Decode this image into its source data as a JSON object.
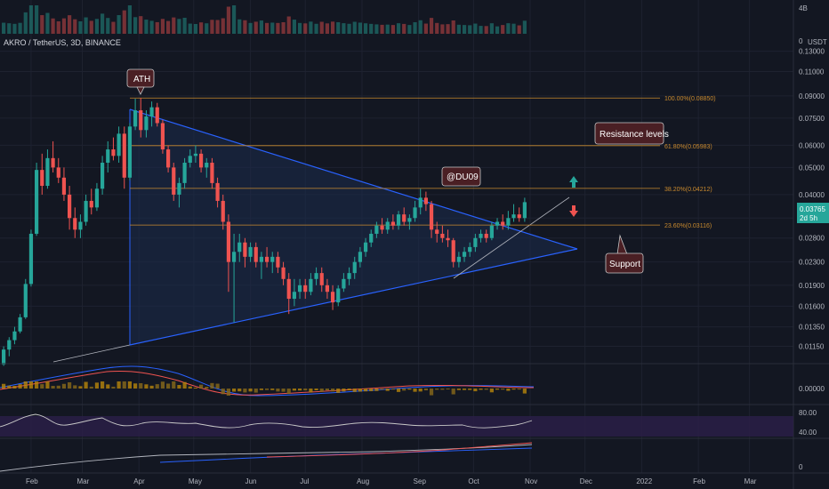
{
  "title": "AKRO / TetherUS, 3D, BINANCE",
  "volume_axis_labels": [
    "4B",
    "0"
  ],
  "price_axis": {
    "unit": "USDT",
    "ticks": [
      "0.13000",
      "0.11000",
      "0.09000",
      "0.07500",
      "0.06000",
      "0.05000",
      "0.04000",
      "0.03300",
      "0.02800",
      "0.02300",
      "0.01900",
      "0.01600",
      "0.01350",
      "0.01150"
    ]
  },
  "current_price": {
    "value": "0.03765",
    "countdown": "2d 5h",
    "color": "#26a69a"
  },
  "time_axis": [
    "Feb",
    "Mar",
    "Apr",
    "May",
    "Jun",
    "Jul",
    "Aug",
    "Sep",
    "Oct",
    "Nov",
    "Dec",
    "2022",
    "Feb",
    "Mar"
  ],
  "fib_levels": [
    {
      "label": "100.00%(0.08850)",
      "price": 0.0885
    },
    {
      "label": "61.80%(0.05983)",
      "price": 0.05983
    },
    {
      "label": "38.20%(0.04212)",
      "price": 0.04212
    },
    {
      "label": "23.60%(0.03116)",
      "price": 0.03116
    }
  ],
  "annotations": {
    "ath": "ATH",
    "watermark": "@DU09",
    "resistance": "Resistance levels",
    "support": "Support"
  },
  "macd_axis": [
    "0.00000"
  ],
  "rsi_axis": [
    "80.00",
    "40.00"
  ],
  "adx_axis": [
    "0"
  ],
  "colors": {
    "up": "#26a69a",
    "down": "#ef5350",
    "fib": "#c98a2e",
    "triangle": "#2962ff",
    "bg": "#131722"
  },
  "chart_data": {
    "type": "candlestick",
    "title": "AKRO / TetherUS, 3D, BINANCE",
    "scale": "log",
    "ylim": [
      0.0105,
      0.15
    ],
    "x_range": [
      "2021-01-15",
      "2022-03-25"
    ],
    "candles": [
      {
        "d": "2021-01-17",
        "o": 0.0099,
        "h": 0.0115,
        "l": 0.0098,
        "c": 0.0112
      },
      {
        "d": "2021-01-20",
        "o": 0.0112,
        "h": 0.0124,
        "l": 0.0106,
        "c": 0.0121
      },
      {
        "d": "2021-01-23",
        "o": 0.0121,
        "h": 0.0135,
        "l": 0.0117,
        "c": 0.013
      },
      {
        "d": "2021-01-26",
        "o": 0.013,
        "h": 0.015,
        "l": 0.0128,
        "c": 0.0146
      },
      {
        "d": "2021-01-29",
        "o": 0.0146,
        "h": 0.02,
        "l": 0.0144,
        "c": 0.0192
      },
      {
        "d": "2021-02-01",
        "o": 0.0192,
        "h": 0.03,
        "l": 0.0188,
        "c": 0.029
      },
      {
        "d": "2021-02-04",
        "o": 0.029,
        "h": 0.052,
        "l": 0.0285,
        "c": 0.049
      },
      {
        "d": "2021-02-07",
        "o": 0.049,
        "h": 0.056,
        "l": 0.04,
        "c": 0.043
      },
      {
        "d": "2021-02-10",
        "o": 0.043,
        "h": 0.058,
        "l": 0.042,
        "c": 0.054
      },
      {
        "d": "2021-02-13",
        "o": 0.054,
        "h": 0.062,
        "l": 0.048,
        "c": 0.05
      },
      {
        "d": "2021-02-16",
        "o": 0.05,
        "h": 0.054,
        "l": 0.044,
        "c": 0.046
      },
      {
        "d": "2021-02-19",
        "o": 0.046,
        "h": 0.05,
        "l": 0.038,
        "c": 0.04
      },
      {
        "d": "2021-02-22",
        "o": 0.04,
        "h": 0.043,
        "l": 0.03,
        "c": 0.033
      },
      {
        "d": "2021-02-25",
        "o": 0.033,
        "h": 0.036,
        "l": 0.028,
        "c": 0.03
      },
      {
        "d": "2021-02-28",
        "o": 0.03,
        "h": 0.034,
        "l": 0.028,
        "c": 0.032
      },
      {
        "d": "2021-03-03",
        "o": 0.032,
        "h": 0.04,
        "l": 0.031,
        "c": 0.038
      },
      {
        "d": "2021-03-06",
        "o": 0.038,
        "h": 0.042,
        "l": 0.034,
        "c": 0.036
      },
      {
        "d": "2021-03-09",
        "o": 0.036,
        "h": 0.044,
        "l": 0.035,
        "c": 0.042
      },
      {
        "d": "2021-03-12",
        "o": 0.042,
        "h": 0.055,
        "l": 0.04,
        "c": 0.052
      },
      {
        "d": "2021-03-15",
        "o": 0.052,
        "h": 0.062,
        "l": 0.048,
        "c": 0.058
      },
      {
        "d": "2021-03-18",
        "o": 0.058,
        "h": 0.064,
        "l": 0.053,
        "c": 0.055
      },
      {
        "d": "2021-03-21",
        "o": 0.055,
        "h": 0.07,
        "l": 0.052,
        "c": 0.066
      },
      {
        "d": "2021-03-24",
        "o": 0.066,
        "h": 0.07,
        "l": 0.042,
        "c": 0.046
      },
      {
        "d": "2021-03-27",
        "o": 0.046,
        "h": 0.072,
        "l": 0.045,
        "c": 0.07
      },
      {
        "d": "2021-03-30",
        "o": 0.07,
        "h": 0.088,
        "l": 0.068,
        "c": 0.08
      },
      {
        "d": "2021-04-02",
        "o": 0.08,
        "h": 0.0885,
        "l": 0.064,
        "c": 0.068
      },
      {
        "d": "2021-04-05",
        "o": 0.068,
        "h": 0.08,
        "l": 0.064,
        "c": 0.076
      },
      {
        "d": "2021-04-08",
        "o": 0.076,
        "h": 0.086,
        "l": 0.07,
        "c": 0.082
      },
      {
        "d": "2021-04-11",
        "o": 0.082,
        "h": 0.085,
        "l": 0.07,
        "c": 0.072
      },
      {
        "d": "2021-04-14",
        "o": 0.072,
        "h": 0.074,
        "l": 0.056,
        "c": 0.058
      },
      {
        "d": "2021-04-17",
        "o": 0.058,
        "h": 0.06,
        "l": 0.048,
        "c": 0.05
      },
      {
        "d": "2021-04-20",
        "o": 0.05,
        "h": 0.052,
        "l": 0.038,
        "c": 0.04
      },
      {
        "d": "2021-04-23",
        "o": 0.04,
        "h": 0.046,
        "l": 0.036,
        "c": 0.044
      },
      {
        "d": "2021-04-26",
        "o": 0.044,
        "h": 0.054,
        "l": 0.042,
        "c": 0.052
      },
      {
        "d": "2021-04-29",
        "o": 0.052,
        "h": 0.058,
        "l": 0.05,
        "c": 0.055
      },
      {
        "d": "2021-05-02",
        "o": 0.055,
        "h": 0.06,
        "l": 0.052,
        "c": 0.056
      },
      {
        "d": "2021-05-05",
        "o": 0.056,
        "h": 0.058,
        "l": 0.048,
        "c": 0.05
      },
      {
        "d": "2021-05-08",
        "o": 0.05,
        "h": 0.054,
        "l": 0.046,
        "c": 0.052
      },
      {
        "d": "2021-05-11",
        "o": 0.052,
        "h": 0.054,
        "l": 0.042,
        "c": 0.044
      },
      {
        "d": "2021-05-14",
        "o": 0.044,
        "h": 0.046,
        "l": 0.036,
        "c": 0.038
      },
      {
        "d": "2021-05-17",
        "o": 0.038,
        "h": 0.04,
        "l": 0.03,
        "c": 0.032
      },
      {
        "d": "2021-05-20",
        "o": 0.032,
        "h": 0.034,
        "l": 0.018,
        "c": 0.023
      },
      {
        "d": "2021-05-23",
        "o": 0.023,
        "h": 0.029,
        "l": 0.014,
        "c": 0.025
      },
      {
        "d": "2021-05-26",
        "o": 0.025,
        "h": 0.029,
        "l": 0.023,
        "c": 0.027
      },
      {
        "d": "2021-05-29",
        "o": 0.027,
        "h": 0.028,
        "l": 0.022,
        "c": 0.024
      },
      {
        "d": "2021-06-01",
        "o": 0.024,
        "h": 0.027,
        "l": 0.023,
        "c": 0.026
      },
      {
        "d": "2021-06-04",
        "o": 0.026,
        "h": 0.027,
        "l": 0.022,
        "c": 0.023
      },
      {
        "d": "2021-06-07",
        "o": 0.023,
        "h": 0.025,
        "l": 0.02,
        "c": 0.024
      },
      {
        "d": "2021-06-10",
        "o": 0.024,
        "h": 0.026,
        "l": 0.022,
        "c": 0.023
      },
      {
        "d": "2021-06-13",
        "o": 0.023,
        "h": 0.025,
        "l": 0.021,
        "c": 0.024
      },
      {
        "d": "2021-06-16",
        "o": 0.024,
        "h": 0.025,
        "l": 0.021,
        "c": 0.022
      },
      {
        "d": "2021-06-19",
        "o": 0.022,
        "h": 0.023,
        "l": 0.019,
        "c": 0.02
      },
      {
        "d": "2021-06-22",
        "o": 0.02,
        "h": 0.021,
        "l": 0.015,
        "c": 0.017
      },
      {
        "d": "2021-06-25",
        "o": 0.017,
        "h": 0.02,
        "l": 0.016,
        "c": 0.018
      },
      {
        "d": "2021-06-28",
        "o": 0.018,
        "h": 0.02,
        "l": 0.017,
        "c": 0.019
      },
      {
        "d": "2021-07-01",
        "o": 0.019,
        "h": 0.02,
        "l": 0.017,
        "c": 0.018
      },
      {
        "d": "2021-07-04",
        "o": 0.018,
        "h": 0.021,
        "l": 0.0175,
        "c": 0.02
      },
      {
        "d": "2021-07-07",
        "o": 0.02,
        "h": 0.022,
        "l": 0.019,
        "c": 0.021
      },
      {
        "d": "2021-07-10",
        "o": 0.021,
        "h": 0.022,
        "l": 0.018,
        "c": 0.019
      },
      {
        "d": "2021-07-13",
        "o": 0.019,
        "h": 0.02,
        "l": 0.017,
        "c": 0.018
      },
      {
        "d": "2021-07-16",
        "o": 0.018,
        "h": 0.019,
        "l": 0.0155,
        "c": 0.0165
      },
      {
        "d": "2021-07-19",
        "o": 0.0165,
        "h": 0.019,
        "l": 0.016,
        "c": 0.0185
      },
      {
        "d": "2021-07-22",
        "o": 0.0185,
        "h": 0.021,
        "l": 0.018,
        "c": 0.02
      },
      {
        "d": "2021-07-25",
        "o": 0.02,
        "h": 0.022,
        "l": 0.019,
        "c": 0.021
      },
      {
        "d": "2021-07-28",
        "o": 0.021,
        "h": 0.024,
        "l": 0.02,
        "c": 0.023
      },
      {
        "d": "2021-07-31",
        "o": 0.023,
        "h": 0.026,
        "l": 0.022,
        "c": 0.025
      },
      {
        "d": "2021-08-03",
        "o": 0.025,
        "h": 0.028,
        "l": 0.024,
        "c": 0.027
      },
      {
        "d": "2021-08-06",
        "o": 0.027,
        "h": 0.03,
        "l": 0.026,
        "c": 0.029
      },
      {
        "d": "2021-08-09",
        "o": 0.029,
        "h": 0.032,
        "l": 0.028,
        "c": 0.031
      },
      {
        "d": "2021-08-12",
        "o": 0.031,
        "h": 0.033,
        "l": 0.029,
        "c": 0.03
      },
      {
        "d": "2021-08-15",
        "o": 0.03,
        "h": 0.033,
        "l": 0.029,
        "c": 0.032
      },
      {
        "d": "2021-08-18",
        "o": 0.032,
        "h": 0.034,
        "l": 0.03,
        "c": 0.031
      },
      {
        "d": "2021-08-21",
        "o": 0.031,
        "h": 0.035,
        "l": 0.03,
        "c": 0.034
      },
      {
        "d": "2021-08-24",
        "o": 0.034,
        "h": 0.036,
        "l": 0.031,
        "c": 0.032
      },
      {
        "d": "2021-08-27",
        "o": 0.032,
        "h": 0.034,
        "l": 0.03,
        "c": 0.033
      },
      {
        "d": "2021-08-30",
        "o": 0.033,
        "h": 0.038,
        "l": 0.032,
        "c": 0.036
      },
      {
        "d": "2021-09-02",
        "o": 0.036,
        "h": 0.042,
        "l": 0.034,
        "c": 0.039
      },
      {
        "d": "2021-09-05",
        "o": 0.039,
        "h": 0.041,
        "l": 0.035,
        "c": 0.037
      },
      {
        "d": "2021-09-08",
        "o": 0.037,
        "h": 0.038,
        "l": 0.028,
        "c": 0.03
      },
      {
        "d": "2021-09-11",
        "o": 0.03,
        "h": 0.032,
        "l": 0.027,
        "c": 0.029
      },
      {
        "d": "2021-09-14",
        "o": 0.029,
        "h": 0.031,
        "l": 0.027,
        "c": 0.028
      },
      {
        "d": "2021-09-17",
        "o": 0.028,
        "h": 0.03,
        "l": 0.026,
        "c": 0.0275
      },
      {
        "d": "2021-09-20",
        "o": 0.0275,
        "h": 0.028,
        "l": 0.022,
        "c": 0.023
      },
      {
        "d": "2021-09-23",
        "o": 0.023,
        "h": 0.025,
        "l": 0.022,
        "c": 0.024
      },
      {
        "d": "2021-09-26",
        "o": 0.024,
        "h": 0.026,
        "l": 0.023,
        "c": 0.025
      },
      {
        "d": "2021-09-29",
        "o": 0.025,
        "h": 0.027,
        "l": 0.024,
        "c": 0.026
      },
      {
        "d": "2021-10-02",
        "o": 0.026,
        "h": 0.029,
        "l": 0.025,
        "c": 0.028
      },
      {
        "d": "2021-10-05",
        "o": 0.028,
        "h": 0.03,
        "l": 0.027,
        "c": 0.029
      },
      {
        "d": "2021-10-08",
        "o": 0.029,
        "h": 0.03,
        "l": 0.027,
        "c": 0.028
      },
      {
        "d": "2021-10-11",
        "o": 0.028,
        "h": 0.032,
        "l": 0.0275,
        "c": 0.031
      },
      {
        "d": "2021-10-14",
        "o": 0.031,
        "h": 0.033,
        "l": 0.03,
        "c": 0.032
      },
      {
        "d": "2021-10-17",
        "o": 0.032,
        "h": 0.034,
        "l": 0.03,
        "c": 0.031
      },
      {
        "d": "2021-10-20",
        "o": 0.031,
        "h": 0.035,
        "l": 0.03,
        "c": 0.033
      },
      {
        "d": "2021-10-23",
        "o": 0.033,
        "h": 0.037,
        "l": 0.032,
        "c": 0.034
      },
      {
        "d": "2021-10-26",
        "o": 0.034,
        "h": 0.036,
        "l": 0.032,
        "c": 0.033
      },
      {
        "d": "2021-10-29",
        "o": 0.033,
        "h": 0.039,
        "l": 0.032,
        "c": 0.0376
      }
    ],
    "annotations": [
      "ATH",
      "Resistance levels",
      "Support",
      "@DU09"
    ]
  }
}
